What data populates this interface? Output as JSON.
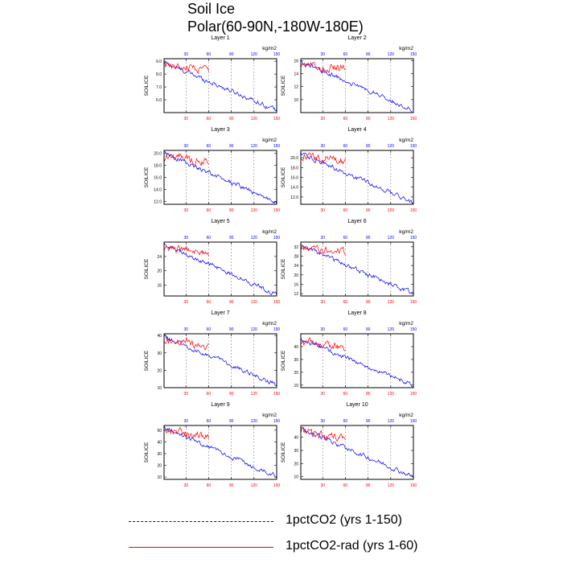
{
  "title": {
    "line1": "Soil Ice",
    "line2": "Polar(60-90N,-180W-180E)"
  },
  "legend": [
    {
      "label": "1pctCO2 (yrs 1-150)",
      "color": "#0000ff",
      "style": "dashed"
    },
    {
      "label": "1pctCO2-rad (yrs 1-60)",
      "color": "#ff0000",
      "style": "solid"
    }
  ],
  "colors": {
    "series1": "#0000ff",
    "series2": "#ff0000",
    "top_ticks": "#0000ff",
    "bottom_ticks": "#ff0000"
  },
  "chart_data": [
    {
      "type": "line",
      "title": "Layer 1",
      "unit": "kg/m2",
      "ylabel": "SOILICE",
      "x_top_ticks": [
        "30",
        "60",
        "90",
        "120",
        "150"
      ],
      "x_bottom_ticks": [
        "30",
        "60",
        "90",
        "120",
        "150"
      ],
      "xlim": [
        1,
        150
      ],
      "ylim": [
        5.0,
        9.2
      ],
      "yticks": [
        "6.0",
        "7.0",
        "8.0",
        "9.0"
      ],
      "grid_x": true,
      "series": [
        {
          "name": "1pctCO2 (yrs 1-150)",
          "x_range": [
            1,
            150
          ],
          "start": 8.9,
          "end": 5.2
        },
        {
          "name": "1pctCO2-rad (yrs 1-60)",
          "x_range": [
            1,
            60
          ],
          "start": 8.7,
          "end": 8.3
        }
      ]
    },
    {
      "type": "line",
      "title": "Layer 2",
      "unit": "kg/m2",
      "ylabel": "SOILICE",
      "x_top_ticks": [
        "30",
        "60",
        "90",
        "120",
        "150"
      ],
      "x_bottom_ticks": [
        "30",
        "60",
        "90",
        "120",
        "150"
      ],
      "xlim": [
        1,
        150
      ],
      "ylim": [
        8,
        16.3
      ],
      "yticks": [
        "10",
        "12",
        "14",
        "16"
      ],
      "grid_x": true,
      "series": [
        {
          "name": "1pctCO2 (yrs 1-150)",
          "x_range": [
            1,
            150
          ],
          "start": 15.8,
          "end": 8.4
        },
        {
          "name": "1pctCO2-rad (yrs 1-60)",
          "x_range": [
            1,
            60
          ],
          "start": 15.3,
          "end": 14.8
        }
      ]
    },
    {
      "type": "line",
      "title": "Layer 3",
      "unit": "kg/m2",
      "ylabel": "SOILICE",
      "x_top_ticks": [
        "30",
        "60",
        "90",
        "120",
        "150"
      ],
      "x_bottom_ticks": [
        "30",
        "60",
        "90",
        "120",
        "150"
      ],
      "xlim": [
        1,
        150
      ],
      "ylim": [
        11.5,
        20.5
      ],
      "yticks": [
        "12.0",
        "14.0",
        "16.0",
        "18.0",
        "20.0"
      ],
      "grid_x": true,
      "series": [
        {
          "name": "1pctCO2 (yrs 1-150)",
          "x_range": [
            1,
            150
          ],
          "start": 20.1,
          "end": 11.8
        },
        {
          "name": "1pctCO2-rad (yrs 1-60)",
          "x_range": [
            1,
            60
          ],
          "start": 19.6,
          "end": 18.6
        }
      ]
    },
    {
      "type": "line",
      "title": "Layer 4",
      "unit": "kg/m2",
      "ylabel": "SOILICE",
      "x_top_ticks": [
        "30",
        "60",
        "90",
        "120",
        "150"
      ],
      "x_bottom_ticks": [
        "30",
        "60",
        "90",
        "120",
        "150"
      ],
      "xlim": [
        1,
        150
      ],
      "ylim": [
        10.5,
        21.5
      ],
      "yticks": [
        "12.0",
        "14.0",
        "16.0",
        "18.0",
        "20.0"
      ],
      "grid_x": true,
      "series": [
        {
          "name": "1pctCO2 (yrs 1-150)",
          "x_range": [
            1,
            150
          ],
          "start": 20.9,
          "end": 10.8
        },
        {
          "name": "1pctCO2-rad (yrs 1-60)",
          "x_range": [
            1,
            60
          ],
          "start": 20.3,
          "end": 19.3
        }
      ]
    },
    {
      "type": "line",
      "title": "Layer 5",
      "unit": "kg/m2",
      "ylabel": "SOILICE",
      "x_top_ticks": [
        "30",
        "60",
        "90",
        "120",
        "150"
      ],
      "x_bottom_ticks": [
        "30",
        "60",
        "90",
        "120",
        "150"
      ],
      "xlim": [
        1,
        150
      ],
      "ylim": [
        13,
        28
      ],
      "yticks": [
        "16",
        "20",
        "24"
      ],
      "grid_x": true,
      "series": [
        {
          "name": "1pctCO2 (yrs 1-150)",
          "x_range": [
            1,
            150
          ],
          "start": 27.5,
          "end": 13.4
        },
        {
          "name": "1pctCO2-rad (yrs 1-60)",
          "x_range": [
            1,
            60
          ],
          "start": 26.5,
          "end": 24.5
        }
      ]
    },
    {
      "type": "line",
      "title": "Layer 6",
      "unit": "kg/m2",
      "ylabel": "SOILICE",
      "x_top_ticks": [
        "30",
        "60",
        "90",
        "120",
        "150"
      ],
      "x_bottom_ticks": [
        "30",
        "60",
        "90",
        "120",
        "150"
      ],
      "xlim": [
        1,
        150
      ],
      "ylim": [
        11,
        34
      ],
      "yticks": [
        "12",
        "16",
        "20",
        "24",
        "28",
        "32"
      ],
      "grid_x": true,
      "series": [
        {
          "name": "1pctCO2 (yrs 1-150)",
          "x_range": [
            1,
            150
          ],
          "start": 32.5,
          "end": 12.0
        },
        {
          "name": "1pctCO2-rad (yrs 1-60)",
          "x_range": [
            1,
            60
          ],
          "start": 31.5,
          "end": 29.5
        }
      ]
    },
    {
      "type": "line",
      "title": "Layer 7",
      "unit": "kg/m2",
      "ylabel": "SOILICE",
      "x_top_ticks": [
        "30",
        "60",
        "90",
        "120",
        "150"
      ],
      "x_bottom_ticks": [
        "30",
        "60",
        "90",
        "120",
        "150"
      ],
      "xlim": [
        1,
        150
      ],
      "ylim": [
        10,
        41
      ],
      "yticks": [
        "10",
        "20",
        "30",
        "40"
      ],
      "grid_x": true,
      "series": [
        {
          "name": "1pctCO2 (yrs 1-150)",
          "x_range": [
            1,
            150
          ],
          "start": 39.5,
          "end": 11.5
        },
        {
          "name": "1pctCO2-rad (yrs 1-60)",
          "x_range": [
            1,
            60
          ],
          "start": 38.5,
          "end": 33.5
        }
      ]
    },
    {
      "type": "line",
      "title": "Layer 8",
      "unit": "kg/m2",
      "ylabel": "SOILICE",
      "x_top_ticks": [
        "30",
        "60",
        "90",
        "120",
        "150"
      ],
      "x_bottom_ticks": [
        "30",
        "60",
        "90",
        "120",
        "150"
      ],
      "xlim": [
        1,
        150
      ],
      "ylim": [
        8,
        50
      ],
      "yticks": [
        "10",
        "20",
        "30",
        "40"
      ],
      "grid_x": true,
      "series": [
        {
          "name": "1pctCO2 (yrs 1-150)",
          "x_range": [
            1,
            150
          ],
          "start": 46.0,
          "end": 10.0
        },
        {
          "name": "1pctCO2-rad (yrs 1-60)",
          "x_range": [
            1,
            60
          ],
          "start": 44.5,
          "end": 39.0
        }
      ]
    },
    {
      "type": "line",
      "title": "Layer 9",
      "unit": "kg/m2",
      "ylabel": "SOILICE",
      "x_top_ticks": [
        "30",
        "60",
        "90",
        "120",
        "150"
      ],
      "x_bottom_ticks": [
        "30",
        "60",
        "90",
        "120",
        "150"
      ],
      "xlim": [
        1,
        150
      ],
      "ylim": [
        8,
        54
      ],
      "yticks": [
        "10",
        "20",
        "30",
        "40",
        "50"
      ],
      "grid_x": true,
      "series": [
        {
          "name": "1pctCO2 (yrs 1-150)",
          "x_range": [
            1,
            150
          ],
          "start": 52.5,
          "end": 10.5
        },
        {
          "name": "1pctCO2-rad (yrs 1-60)",
          "x_range": [
            1,
            60
          ],
          "start": 51.0,
          "end": 44.0
        }
      ]
    },
    {
      "type": "line",
      "title": "Layer 10",
      "unit": "kg/m2",
      "ylabel": "SOILICE",
      "x_top_ticks": [
        "30",
        "60",
        "90",
        "120",
        "150"
      ],
      "x_bottom_ticks": [
        "30",
        "60",
        "90",
        "120",
        "150"
      ],
      "xlim": [
        1,
        150
      ],
      "ylim": [
        8,
        49
      ],
      "yticks": [
        "10",
        "20",
        "30",
        "40"
      ],
      "grid_x": true,
      "series": [
        {
          "name": "1pctCO2 (yrs 1-150)",
          "x_range": [
            1,
            150
          ],
          "start": 46.5,
          "end": 10.0
        },
        {
          "name": "1pctCO2-rad (yrs 1-60)",
          "x_range": [
            1,
            60
          ],
          "start": 45.0,
          "end": 38.0
        }
      ]
    }
  ]
}
